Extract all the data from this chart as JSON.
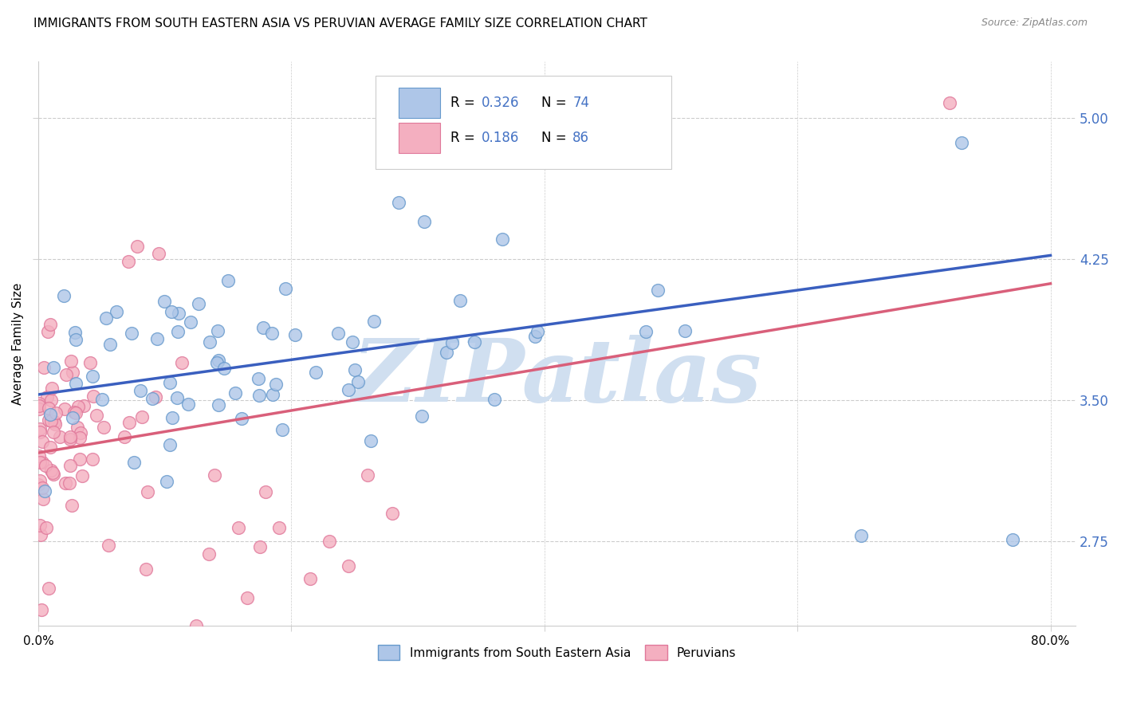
{
  "title": "IMMIGRANTS FROM SOUTH EASTERN ASIA VS PERUVIAN AVERAGE FAMILY SIZE CORRELATION CHART",
  "source": "Source: ZipAtlas.com",
  "ylabel": "Average Family Size",
  "y_ticks": [
    2.75,
    3.5,
    4.25,
    5.0
  ],
  "xlim": [
    0.0,
    0.82
  ],
  "ylim": [
    2.3,
    5.3
  ],
  "series1_color": "#aec6e8",
  "series1_edge": "#6699cc",
  "series2_color": "#f4afc0",
  "series2_edge": "#e0789a",
  "trend1_color": "#3a5fbf",
  "trend2_color": "#d95f7a",
  "watermark": "ZIPatlas",
  "watermark_color": "#d0dff0",
  "background": "#ffffff",
  "grid_color": "#cccccc",
  "right_tick_color": "#4472c4",
  "seed": 99,
  "n1": 74,
  "n2": 86,
  "trend1_x0": 0.0,
  "trend1_x1": 0.8,
  "trend1_y0": 3.53,
  "trend1_y1": 4.27,
  "trend2_x0": 0.0,
  "trend2_x1": 0.8,
  "trend2_y0": 3.22,
  "trend2_y1": 4.12
}
